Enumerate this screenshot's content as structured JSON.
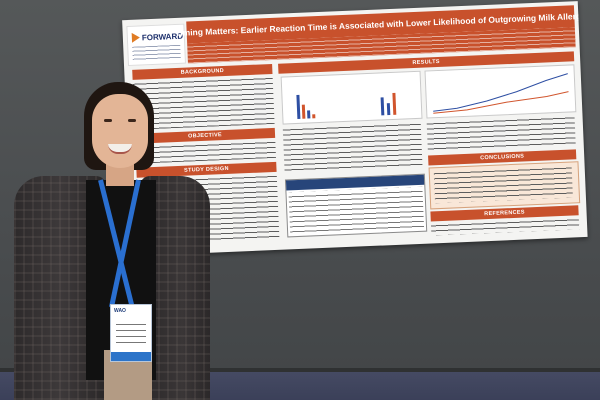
{
  "poster": {
    "title": "Timing Matters: Earlier Reaction Time is Associated with Lower Likelihood of Outgrowing Milk Allergy",
    "logo_text": "FORWARD",
    "sections": {
      "background": "BACKGROUND",
      "objective": "OBJECTIVE",
      "study_design": "STUDY DESIGN",
      "results": "RESULTS",
      "conclusions": "CONCLUSIONS",
      "references": "REFERENCES"
    },
    "colors": {
      "header_band": "#c8512c",
      "table_header": "#27457a",
      "poster_background": "#f4f4f2"
    }
  },
  "person": {
    "badge_brand": "WAO",
    "lanyard_color": "#2a6fd0"
  },
  "scene": {
    "wall_color": "#4e5153",
    "floor_color": "#424760"
  }
}
